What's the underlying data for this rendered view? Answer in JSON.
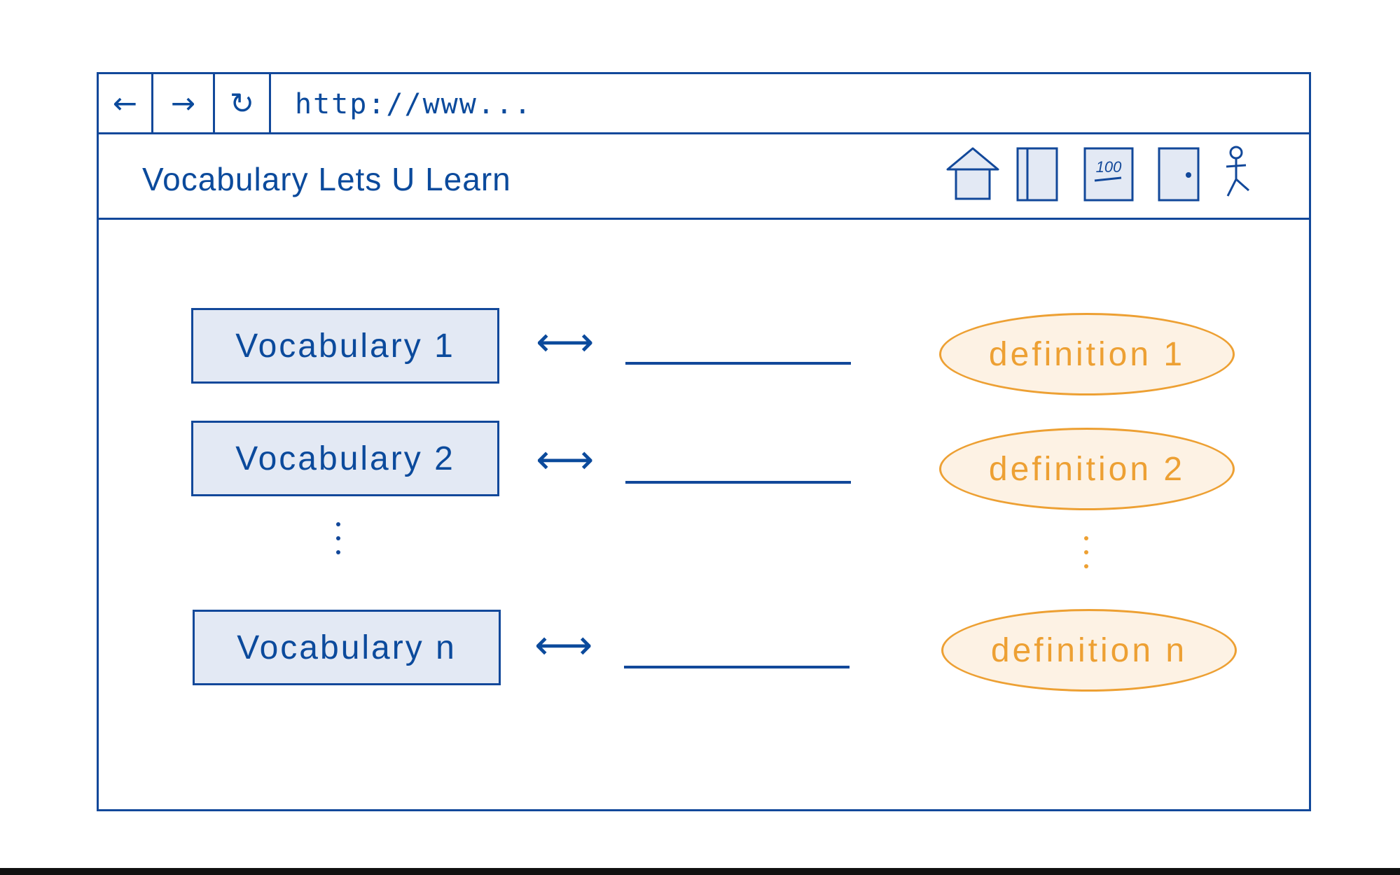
{
  "browser": {
    "back_icon": "←",
    "forward_icon": "→",
    "refresh_icon": "↻",
    "url": "http://www..."
  },
  "site": {
    "title": "Vocabulary Lets U Learn",
    "icons": [
      "home-icon",
      "book-icon",
      "score-icon",
      "door-icon",
      "person-icon"
    ],
    "score_text": "100"
  },
  "vocab_items": [
    {
      "label": "Vocabulary 1"
    },
    {
      "label": "Vocabulary 2"
    },
    {
      "label": "Vocabulary n"
    }
  ],
  "arrow_glyph": "⟷",
  "definitions": [
    {
      "label": "definition 1"
    },
    {
      "label": "definition 2"
    },
    {
      "label": "definition n"
    }
  ],
  "colors": {
    "primary_blue": "#12489a",
    "box_fill": "#e3e9f4",
    "accent_orange": "#eda033",
    "oval_fill": "#fdf2e4"
  }
}
